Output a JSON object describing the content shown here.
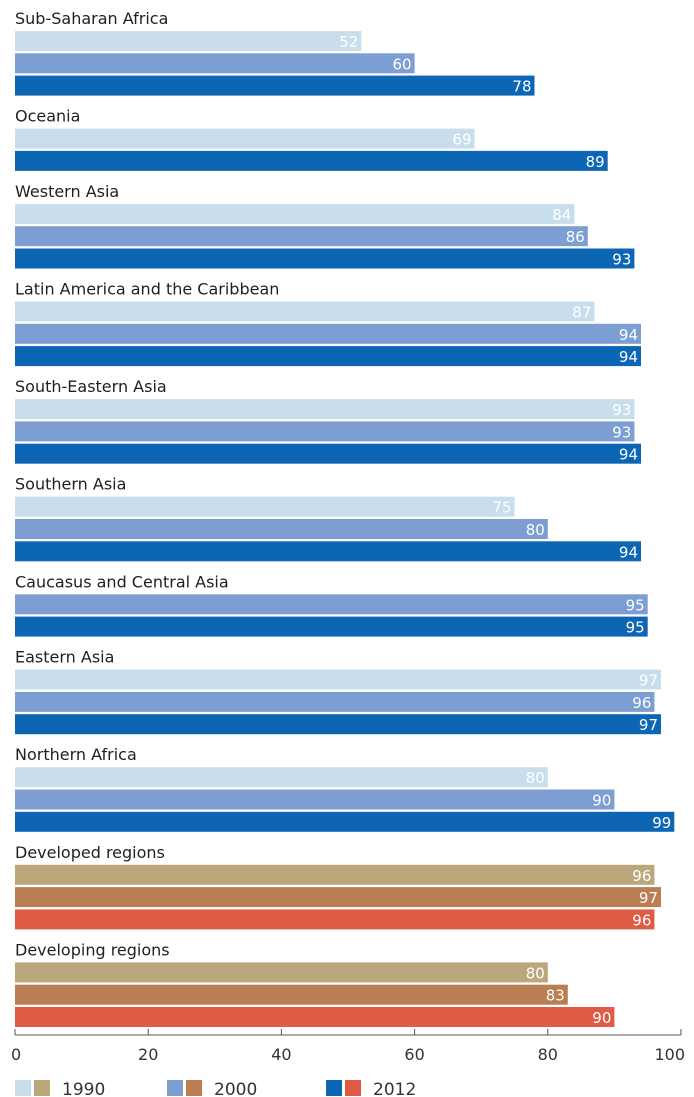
{
  "chart_data": {
    "type": "bar",
    "orientation": "horizontal",
    "xlim": [
      0,
      100
    ],
    "xticks": [
      "0",
      "20",
      "40",
      "60",
      "80",
      "100"
    ],
    "grid": false,
    "legend_position": "bottom",
    "legend": [
      {
        "label": "1990",
        "colors": [
          "#c9deec",
          "#bca77c"
        ]
      },
      {
        "label": "2000",
        "colors": [
          "#7c9ed3",
          "#b97f52"
        ]
      },
      {
        "label": "2012",
        "colors": [
          "#0d66b4",
          "#df5b45"
        ]
      }
    ],
    "palettes": {
      "region": {
        "1990": "#c9deec",
        "2000": "#7c9ed3",
        "2012": "#0d66b4"
      },
      "aggregate": {
        "1990": "#bca77c",
        "2000": "#b97f52",
        "2012": "#df5b45"
      }
    },
    "groups": [
      {
        "name": "Sub-Saharan Africa",
        "palette": "region",
        "bars": [
          {
            "year": "1990",
            "value": 52
          },
          {
            "year": "2000",
            "value": 60
          },
          {
            "year": "2012",
            "value": 78
          }
        ]
      },
      {
        "name": "Oceania",
        "palette": "region",
        "bars": [
          {
            "year": "1990",
            "value": 69
          },
          {
            "year": "2012",
            "value": 89
          }
        ]
      },
      {
        "name": "Western Asia",
        "palette": "region",
        "bars": [
          {
            "year": "1990",
            "value": 84
          },
          {
            "year": "2000",
            "value": 86
          },
          {
            "year": "2012",
            "value": 93
          }
        ]
      },
      {
        "name": "Latin America and the Caribbean",
        "palette": "region",
        "bars": [
          {
            "year": "1990",
            "value": 87
          },
          {
            "year": "2000",
            "value": 94
          },
          {
            "year": "2012",
            "value": 94
          }
        ]
      },
      {
        "name": "South-Eastern Asia",
        "palette": "region",
        "bars": [
          {
            "year": "1990",
            "value": 93
          },
          {
            "year": "2000",
            "value": 93
          },
          {
            "year": "2012",
            "value": 94
          }
        ]
      },
      {
        "name": "Southern Asia",
        "palette": "region",
        "bars": [
          {
            "year": "1990",
            "value": 75
          },
          {
            "year": "2000",
            "value": 80
          },
          {
            "year": "2012",
            "value": 94
          }
        ]
      },
      {
        "name": "Caucasus and Central Asia",
        "palette": "region",
        "bars": [
          {
            "year": "2000",
            "value": 95
          },
          {
            "year": "2012",
            "value": 95
          }
        ]
      },
      {
        "name": "Eastern Asia",
        "palette": "region",
        "bars": [
          {
            "year": "1990",
            "value": 97
          },
          {
            "year": "2000",
            "value": 96
          },
          {
            "year": "2012",
            "value": 97
          }
        ]
      },
      {
        "name": "Northern Africa",
        "palette": "region",
        "bars": [
          {
            "year": "1990",
            "value": 80
          },
          {
            "year": "2000",
            "value": 90
          },
          {
            "year": "2012",
            "value": 99
          }
        ]
      },
      {
        "name": "Developed regions",
        "palette": "aggregate",
        "bars": [
          {
            "year": "1990",
            "value": 96
          },
          {
            "year": "2000",
            "value": 97
          },
          {
            "year": "2012",
            "value": 96
          }
        ]
      },
      {
        "name": "Developing regions",
        "palette": "aggregate",
        "bars": [
          {
            "year": "1990",
            "value": 80
          },
          {
            "year": "2000",
            "value": 83
          },
          {
            "year": "2012",
            "value": 90
          }
        ]
      }
    ]
  }
}
